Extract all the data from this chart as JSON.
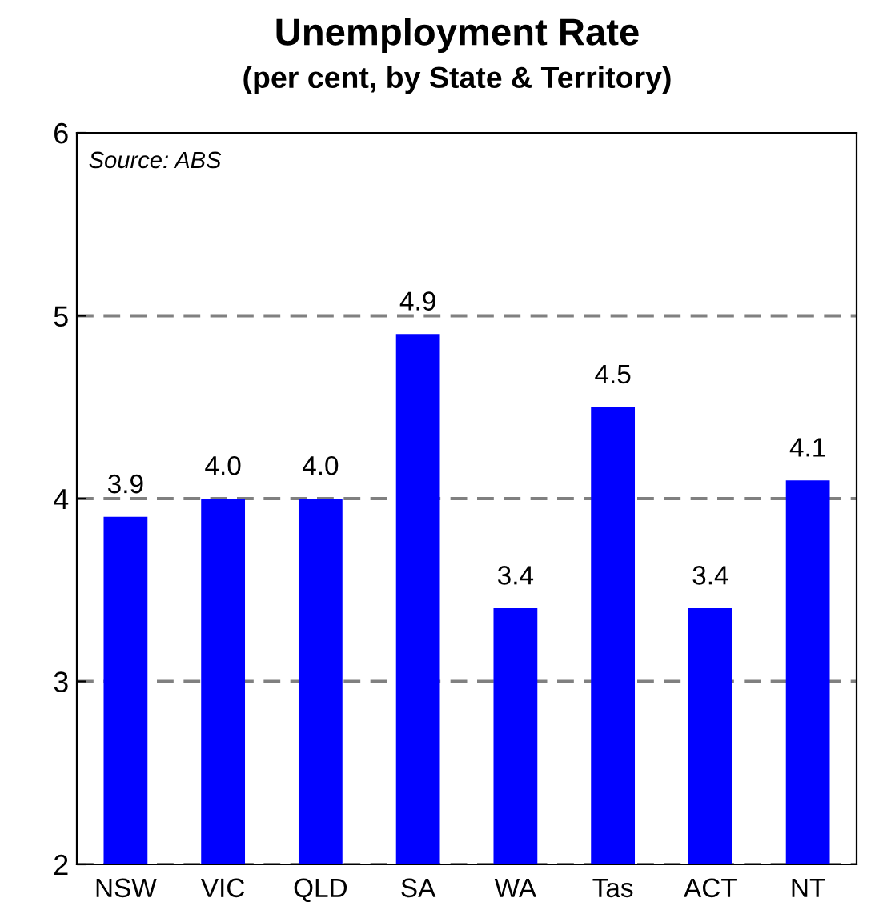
{
  "chart_data": {
    "type": "bar",
    "title": "Unemployment Rate",
    "subtitle": "(per cent, by State & Territory)",
    "categories": [
      "NSW",
      "VIC",
      "QLD",
      "SA",
      "WA",
      "Tas",
      "ACT",
      "NT"
    ],
    "values": [
      3.9,
      4.0,
      4.0,
      4.9,
      3.4,
      4.5,
      3.4,
      4.1
    ],
    "value_labels": [
      "3.9",
      "4.0",
      "4.0",
      "4.9",
      "3.4",
      "4.5",
      "3.4",
      "4.1"
    ],
    "color": "#0000ff",
    "ylim": [
      2,
      6
    ],
    "yticks": [
      2,
      3,
      4,
      5,
      6
    ],
    "grid": "y",
    "annotations": [
      "Source: ABS"
    ]
  }
}
